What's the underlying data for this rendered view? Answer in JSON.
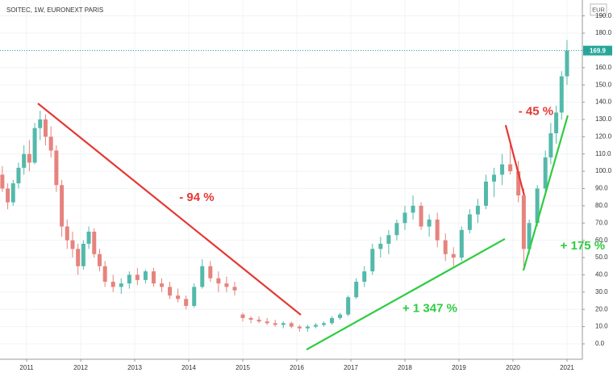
{
  "chart_data": {
    "type": "candlestick",
    "title": "SOITEC, 1W, EURONEXT PARIS",
    "currency": "EUR",
    "last_price": 169.9,
    "last_price_color": "#26a69a",
    "up_color": "#53b9ab",
    "down_color": "#e6837d",
    "grid": true,
    "xlim": [
      2010.507,
      2021.284
    ],
    "xticks": [
      2011,
      2012,
      2013,
      2014,
      2015,
      2016,
      2017,
      2018,
      2019,
      2020,
      2021
    ],
    "ylim": [
      -8.9,
      199.2
    ],
    "yticks": [
      {
        "value": 0,
        "label": "0.0"
      },
      {
        "value": 10,
        "label": "10.0"
      },
      {
        "value": 20,
        "label": "20.0"
      },
      {
        "value": 30,
        "label": "30.0"
      },
      {
        "value": 40,
        "label": "40.0"
      },
      {
        "value": 50,
        "label": "50.0"
      },
      {
        "value": 60,
        "label": "60.0"
      },
      {
        "value": 70,
        "label": "70.0"
      },
      {
        "value": 80,
        "label": "80.0"
      },
      {
        "value": 90,
        "label": "90.0"
      },
      {
        "value": 100,
        "label": "100.0"
      },
      {
        "value": 110,
        "label": "110.0"
      },
      {
        "value": 120,
        "label": "120.0"
      },
      {
        "value": 130,
        "label": "130.0"
      },
      {
        "value": 140,
        "label": "140.0"
      },
      {
        "value": 150,
        "label": "150.0"
      },
      {
        "value": 160,
        "label": "160.0"
      },
      {
        "value": 170,
        "label": "170.0"
      },
      {
        "value": 180,
        "label": "180.0"
      },
      {
        "value": 190,
        "label": "190.0"
      }
    ],
    "x": [
      2010.55,
      2010.65,
      2010.75,
      2010.85,
      2010.95,
      2011.05,
      2011.15,
      2011.25,
      2011.35,
      2011.45,
      2011.55,
      2011.65,
      2011.75,
      2011.85,
      2011.95,
      2012.05,
      2012.15,
      2012.25,
      2012.35,
      2012.45,
      2012.6,
      2012.75,
      2012.9,
      2013.05,
      2013.2,
      2013.35,
      2013.5,
      2013.65,
      2013.8,
      2013.95,
      2014.1,
      2014.25,
      2014.4,
      2014.55,
      2014.7,
      2014.85,
      2015.0,
      2015.15,
      2015.3,
      2015.45,
      2015.6,
      2015.75,
      2015.9,
      2016.05,
      2016.2,
      2016.35,
      2016.5,
      2016.65,
      2016.8,
      2016.95,
      2017.1,
      2017.25,
      2017.4,
      2017.55,
      2017.7,
      2017.85,
      2018.0,
      2018.15,
      2018.3,
      2018.45,
      2018.6,
      2018.75,
      2018.9,
      2019.05,
      2019.2,
      2019.35,
      2019.5,
      2019.65,
      2019.8,
      2019.95,
      2020.1,
      2020.2,
      2020.3,
      2020.45,
      2020.6,
      2020.7,
      2020.8,
      2020.9,
      2021.0
    ],
    "open": [
      98,
      90,
      82,
      93,
      102,
      110,
      105,
      125,
      130,
      120,
      112,
      92,
      68,
      60,
      55,
      45,
      58,
      65,
      52,
      45,
      36,
      33,
      35,
      40,
      37,
      42,
      35,
      33,
      28,
      26,
      22,
      33,
      45,
      38,
      35,
      33,
      17,
      15,
      14,
      13,
      12,
      11,
      12,
      10,
      9,
      10,
      11,
      12,
      15,
      17,
      27,
      36,
      42,
      55,
      58,
      63,
      70,
      76,
      80,
      68,
      72,
      60,
      52,
      50,
      66,
      75,
      80,
      94,
      98,
      104,
      100,
      86,
      55,
      70,
      90,
      108,
      122,
      134,
      155
    ],
    "high": [
      103,
      93,
      95,
      105,
      115,
      118,
      128,
      135,
      133,
      126,
      115,
      95,
      72,
      65,
      58,
      60,
      68,
      67,
      55,
      48,
      40,
      38,
      42,
      44,
      43,
      44,
      38,
      36,
      32,
      28,
      35,
      49,
      48,
      42,
      39,
      36,
      18,
      16,
      16,
      15,
      14,
      13,
      13,
      11,
      11,
      12,
      13,
      16,
      18,
      28,
      38,
      45,
      58,
      62,
      66,
      72,
      80,
      86,
      82,
      75,
      76,
      64,
      56,
      68,
      78,
      84,
      98,
      102,
      110,
      118,
      106,
      90,
      72,
      92,
      112,
      128,
      138,
      158,
      176
    ],
    "low": [
      88,
      78,
      80,
      90,
      98,
      100,
      104,
      118,
      115,
      108,
      88,
      62,
      55,
      50,
      40,
      43,
      55,
      50,
      42,
      33,
      30,
      29,
      32,
      34,
      35,
      33,
      30,
      26,
      24,
      20,
      21,
      32,
      36,
      30,
      30,
      28,
      13,
      12,
      12,
      11,
      10,
      9,
      9,
      7,
      7,
      9,
      10,
      11,
      14,
      16,
      26,
      33,
      40,
      50,
      52,
      60,
      66,
      72,
      66,
      62,
      56,
      48,
      45,
      48,
      64,
      70,
      78,
      85,
      92,
      98,
      82,
      45,
      52,
      68,
      86,
      104,
      116,
      130,
      150
    ],
    "close": [
      90,
      82,
      93,
      102,
      110,
      105,
      125,
      130,
      120,
      112,
      92,
      68,
      60,
      55,
      45,
      58,
      65,
      52,
      45,
      36,
      33,
      35,
      40,
      37,
      42,
      35,
      33,
      28,
      26,
      22,
      33,
      45,
      38,
      35,
      33,
      31,
      15,
      14,
      13,
      12,
      11,
      12,
      10,
      9,
      10,
      11,
      12,
      15,
      17,
      27,
      36,
      42,
      55,
      58,
      63,
      70,
      76,
      80,
      68,
      72,
      60,
      52,
      50,
      66,
      75,
      80,
      94,
      98,
      104,
      100,
      86,
      55,
      70,
      90,
      108,
      122,
      134,
      155,
      169.9
    ],
    "annotations": [
      {
        "text": "- 94 %",
        "color": "#e53935",
        "x": [
          2011.208,
          2016.074
        ],
        "y": [
          139.3,
          16.8
        ]
      },
      {
        "text": "- 45 %",
        "color": "#e53935",
        "x": [
          2019.865,
          2020.208
        ],
        "y": [
          126.7,
          86.0
        ]
      },
      {
        "text": "+ 1 347 %",
        "color": "#2ecc40",
        "x": [
          2016.179,
          2019.85
        ],
        "y": [
          -3.3,
          60.8
        ]
      },
      {
        "text": "+ 175 %",
        "color": "#2ecc40",
        "x": [
          2020.193,
          2021.014
        ],
        "y": [
          42.5,
          132.3
        ]
      }
    ]
  }
}
